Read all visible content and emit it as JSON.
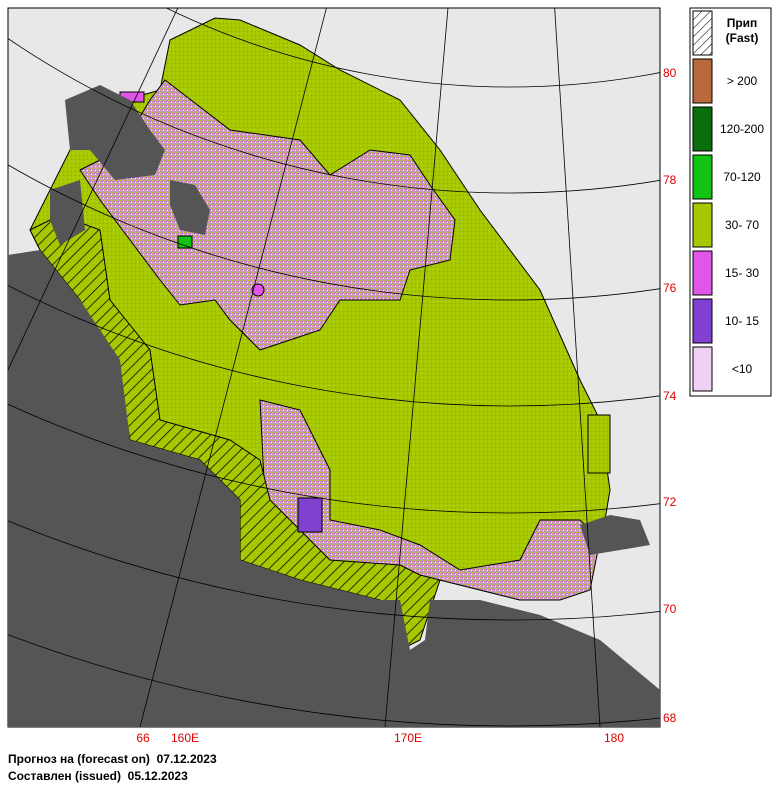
{
  "map": {
    "lat_labels": [
      "80",
      "78",
      "76",
      "74",
      "72",
      "70",
      "68"
    ],
    "lon_labels": [
      "66",
      "160E",
      "170E",
      "180"
    ]
  },
  "legend": {
    "title": "Прип",
    "subtitle": "(Fast)",
    "items": [
      "> 200",
      "120-200",
      "70-120",
      "30-  70",
      "15-  30",
      "10-  15",
      "<10"
    ]
  },
  "footer": {
    "forecast": "Прогноз на (forecast on)  07.12.2023",
    "issued": "Составлен (issued)  05.12.2023"
  }
}
